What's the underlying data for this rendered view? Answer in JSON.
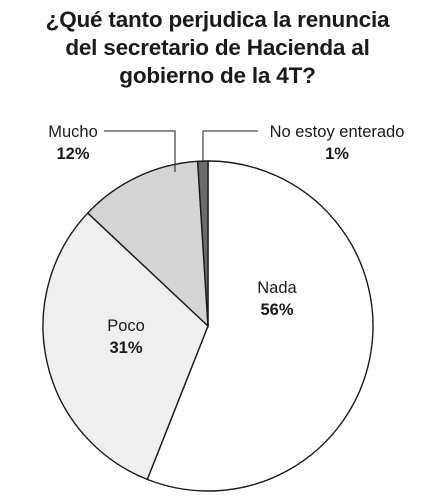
{
  "chart_data": {
    "type": "pie",
    "title_lines": [
      "¿Qué tanto perjudica la renuncia",
      "del secretario de Hacienda al",
      "gobierno de la 4T?"
    ],
    "slices": [
      {
        "label": "Nada",
        "value": 56,
        "value_label": "56%",
        "color": "#ffffff"
      },
      {
        "label": "Poco",
        "value": 31,
        "value_label": "31%",
        "color": "#efefef"
      },
      {
        "label": "Mucho",
        "value": 12,
        "value_label": "12%",
        "color": "#d4d4d4"
      },
      {
        "label": "No estoy enterado",
        "value": 1,
        "value_label": "1%",
        "color": "#6b6b6b"
      }
    ],
    "start": "12 o'clock",
    "direction": "clockwise"
  }
}
